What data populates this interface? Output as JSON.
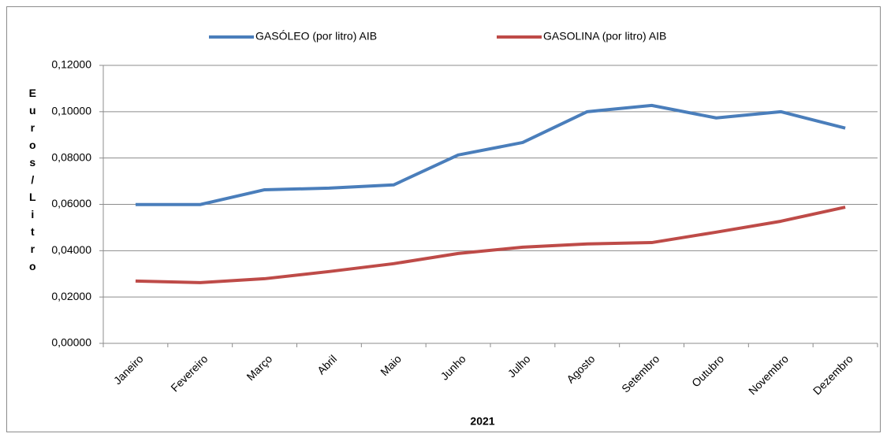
{
  "chart_data": {
    "type": "line",
    "x_label": "2021",
    "y_label": "Euros/Litro",
    "categories": [
      "Janeiro",
      "Fevereiro",
      "Março",
      "Abril",
      "Maio",
      "Junho",
      "Julho",
      "Agosto",
      "Setembro",
      "Outubro",
      "Novembro",
      "Dezembro"
    ],
    "series": [
      {
        "name": "GASÓLEO (por litro) AIB",
        "color": "#4a7ebb",
        "values": [
          0.0599,
          0.0599,
          0.0663,
          0.067,
          0.0684,
          0.0813,
          0.0867,
          0.1,
          0.1027,
          0.0973,
          0.1,
          0.0929
        ]
      },
      {
        "name": "GASOLINA  (por litro) AIB",
        "color": "#be4b48",
        "values": [
          0.0269,
          0.0262,
          0.0279,
          0.031,
          0.0344,
          0.0388,
          0.0415,
          0.0429,
          0.0435,
          0.048,
          0.0527,
          0.0588
        ]
      }
    ],
    "ylim": [
      0,
      0.12
    ],
    "yticks": [
      {
        "value": 0,
        "label": "0,00000"
      },
      {
        "value": 0.02,
        "label": "0,02000"
      },
      {
        "value": 0.04,
        "label": "0,04000"
      },
      {
        "value": 0.06,
        "label": "0,06000"
      },
      {
        "value": 0.08,
        "label": "0,08000"
      },
      {
        "value": 0.1,
        "label": "0,10000"
      },
      {
        "value": 0.12,
        "label": "0,12000"
      }
    ],
    "grid": true,
    "legend": "top"
  }
}
